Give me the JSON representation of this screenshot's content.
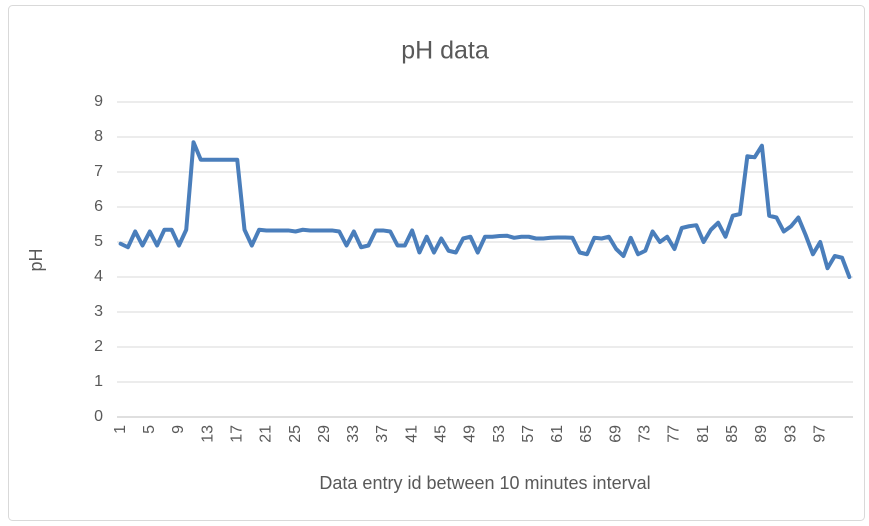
{
  "chart_data": {
    "type": "line",
    "title": "pH data",
    "y_label": "pH",
    "x_label": "Data entry id between 10 minutes interval",
    "categories": [
      1,
      null,
      null,
      null,
      5,
      null,
      null,
      null,
      9,
      null,
      null,
      null,
      13,
      null,
      null,
      null,
      17,
      null,
      null,
      null,
      21,
      null,
      null,
      null,
      25,
      null,
      null,
      null,
      29,
      null,
      null,
      null,
      33,
      null,
      null,
      null,
      37,
      null,
      null,
      null,
      41,
      null,
      null,
      null,
      45,
      null,
      null,
      null,
      49,
      null,
      null,
      null,
      53,
      null,
      null,
      null,
      57,
      null,
      null,
      null,
      61,
      null,
      null,
      null,
      65,
      null,
      null,
      null,
      69,
      null,
      null,
      null,
      73,
      null,
      null,
      null,
      77,
      null,
      null,
      null,
      81,
      null,
      null,
      null,
      85,
      null,
      null,
      null,
      89,
      null,
      null,
      null,
      93,
      null,
      null,
      null,
      97,
      null,
      null,
      null,
      null
    ],
    "values": [
      4.95,
      4.85,
      5.3,
      4.9,
      5.3,
      4.9,
      5.35,
      5.35,
      4.9,
      5.35,
      7.85,
      7.35,
      7.35,
      7.35,
      7.35,
      7.35,
      7.35,
      5.35,
      4.9,
      5.35,
      5.33,
      5.33,
      5.33,
      5.33,
      5.3,
      5.35,
      5.33,
      5.33,
      5.33,
      5.33,
      5.3,
      4.9,
      5.3,
      4.85,
      4.9,
      5.33,
      5.33,
      5.3,
      4.9,
      4.9,
      5.33,
      4.7,
      5.15,
      4.7,
      5.1,
      4.75,
      4.7,
      5.1,
      5.15,
      4.7,
      5.15,
      5.15,
      5.17,
      5.18,
      5.12,
      5.15,
      5.15,
      5.1,
      5.1,
      5.12,
      5.13,
      5.13,
      5.12,
      4.7,
      4.65,
      5.12,
      5.1,
      5.15,
      4.8,
      4.6,
      5.12,
      4.65,
      4.75,
      5.3,
      5.0,
      5.15,
      4.8,
      5.4,
      5.45,
      5.48,
      5.0,
      5.35,
      5.55,
      5.15,
      5.75,
      5.8,
      7.45,
      7.42,
      7.75,
      5.75,
      5.7,
      5.3,
      5.45,
      5.7,
      5.2,
      4.65,
      5.0,
      4.25,
      4.6,
      4.55,
      4.0
    ],
    "color": "#4a7ebb",
    "ylim": [
      0,
      9
    ],
    "yticks": [
      0,
      1,
      2,
      3,
      4,
      5,
      6,
      7,
      8,
      9
    ],
    "grid": true
  }
}
